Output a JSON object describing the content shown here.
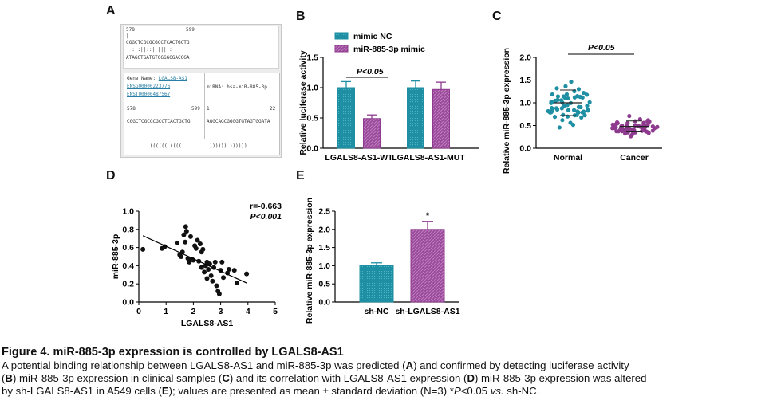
{
  "colors": {
    "teal": "#1f8fa3",
    "purple": "#8e3a8e",
    "purple_light": "#b872b8",
    "black": "#111111"
  },
  "panel_letters": [
    "A",
    "B",
    "C",
    "D",
    "E"
  ],
  "panelA": {
    "top_num_left": "578",
    "top_num_right": "599",
    "top_bar": "|",
    "top_seq1": "CGGCTCGCGCGCCTCACTGCTG",
    "top_pairs": "  :|:||::| ||||:",
    "top_seq2": "ATAGGTGATGTGGGGCGACGGA",
    "gene_name_label": "Gene Name: ",
    "gene_name": "LGALS8-AS1",
    "ensg": "ENSG00000223776",
    "enst": "ENST00000487567",
    "mirna_label": "miRNA: hsa-miR-885-3p",
    "lnum_left": "578",
    "lnum_right": "599",
    "rnum_left": "1",
    "rnum_right": "22",
    "lseq": "CGGCTCGCGCGCCTCACTGCTG",
    "rseq": "AGGCAGCGGGGTGTAGTGGATA",
    "l_struct": "........((((((.((((.",
    "r_struct": ".)))))).))))))......."
  },
  "chart_data": [
    {
      "type": "bar",
      "panel": "B",
      "ylabel": "Relative luciferase activity",
      "ylim": [
        0,
        1.5
      ],
      "yticks": [
        "0.0",
        "0.5",
        "1.0",
        "1.5"
      ],
      "categories": [
        "LGALS8-AS1-WT",
        "LGALS8-AS1-MUT"
      ],
      "series": [
        {
          "name": "mimic NC",
          "values": [
            1.0,
            1.0
          ],
          "errors": [
            0.1,
            0.11
          ]
        },
        {
          "name": "miR-885-3p mimic",
          "values": [
            0.49,
            0.97
          ],
          "errors": [
            0.06,
            0.12
          ]
        }
      ],
      "annotation": "P<0.05",
      "legend": "top"
    },
    {
      "type": "scatter",
      "panel": "C",
      "ylabel": "Relative miR-885-3p expression",
      "ylim": [
        0,
        2.0
      ],
      "yticks": [
        "0.0",
        "0.5",
        "1.0",
        "1.5",
        "2.0"
      ],
      "categories": [
        "Normal",
        "Cancer"
      ],
      "means": [
        1.0,
        0.48
      ],
      "sd": [
        0.28,
        0.12
      ],
      "annotation": "P<0.05"
    },
    {
      "type": "scatter",
      "panel": "D",
      "xlabel": "LGALS8-AS1",
      "ylabel": "miR-885-3p",
      "xlim": [
        0,
        5
      ],
      "ylim": [
        0,
        1.0
      ],
      "xticks": [
        "0",
        "1",
        "2",
        "3",
        "4",
        "5"
      ],
      "yticks": [
        "0.0",
        "0.2",
        "0.4",
        "0.6",
        "0.8",
        "1.0"
      ],
      "stat_r": "r=-0.663",
      "stat_p": "P<0.001",
      "points": [
        [
          0.15,
          0.58
        ],
        [
          0.85,
          0.59
        ],
        [
          0.95,
          0.61
        ],
        [
          1.4,
          0.65
        ],
        [
          1.5,
          0.52
        ],
        [
          1.55,
          0.5
        ],
        [
          1.6,
          0.55
        ],
        [
          1.65,
          0.74
        ],
        [
          1.7,
          0.66
        ],
        [
          1.72,
          0.83
        ],
        [
          1.75,
          0.78
        ],
        [
          1.8,
          0.48
        ],
        [
          1.85,
          0.44
        ],
        [
          1.9,
          0.72
        ],
        [
          1.95,
          0.47
        ],
        [
          2.0,
          0.46
        ],
        [
          2.05,
          0.62
        ],
        [
          2.1,
          0.59
        ],
        [
          2.15,
          0.68
        ],
        [
          2.2,
          0.45
        ],
        [
          2.25,
          0.64
        ],
        [
          2.3,
          0.55
        ],
        [
          2.3,
          0.38
        ],
        [
          2.35,
          0.58
        ],
        [
          2.4,
          0.33
        ],
        [
          2.45,
          0.4
        ],
        [
          2.5,
          0.26
        ],
        [
          2.5,
          0.44
        ],
        [
          2.55,
          0.36
        ],
        [
          2.6,
          0.42
        ],
        [
          2.65,
          0.29
        ],
        [
          2.7,
          0.23
        ],
        [
          2.75,
          0.38
        ],
        [
          2.8,
          0.44
        ],
        [
          2.85,
          0.18
        ],
        [
          2.9,
          0.12
        ],
        [
          2.95,
          0.09
        ],
        [
          3.0,
          0.35
        ],
        [
          3.05,
          0.44
        ],
        [
          3.1,
          0.27
        ],
        [
          3.25,
          0.32
        ],
        [
          3.3,
          0.36
        ],
        [
          3.5,
          0.35
        ],
        [
          3.6,
          0.21
        ],
        [
          3.95,
          0.31
        ]
      ],
      "fit": [
        [
          0.15,
          0.73
        ],
        [
          3.95,
          0.21
        ]
      ]
    },
    {
      "type": "bar",
      "panel": "E",
      "ylabel": "Relative miR-885-3p expression",
      "ylim": [
        0,
        2.5
      ],
      "yticks": [
        "0.0",
        "0.5",
        "1.0",
        "1.5",
        "2.0",
        "2.5"
      ],
      "categories": [
        "sh-NC",
        "sh-LGALS8-AS1"
      ],
      "values": [
        1.0,
        2.0
      ],
      "errors": [
        0.08,
        0.22
      ],
      "annotation": "*"
    }
  ],
  "caption": {
    "title": "Figure 4. miR-885-3p expression is controlled by LGALS8-AS1",
    "line1": [
      {
        "t": "A potential binding relationship between LGALS8-AS1 and miR-885-3p was predicted ("
      },
      {
        "t": "A",
        "b": true
      },
      {
        "t": ") and confirmed by detecting luciferase activity"
      }
    ],
    "line2": [
      {
        "t": "("
      },
      {
        "t": "B",
        "b": true
      },
      {
        "t": ") miR-885-3p expression in clinical samples ("
      },
      {
        "t": "C",
        "b": true
      },
      {
        "t": ") and its correlation with LGALS8-AS1 expression ("
      },
      {
        "t": "D",
        "b": true
      },
      {
        "t": ") miR-885-3p expression was altered"
      }
    ],
    "line3": [
      {
        "t": "by sh-LGALS8-AS1 in A549 cells ("
      },
      {
        "t": "E",
        "b": true
      },
      {
        "t": "); values are presented as mean ± standard deviation (N=3) *"
      },
      {
        "t": "P",
        "i": true
      },
      {
        "t": "<0.05 "
      },
      {
        "t": "vs.",
        "i": true
      },
      {
        "t": " sh-NC."
      }
    ]
  }
}
